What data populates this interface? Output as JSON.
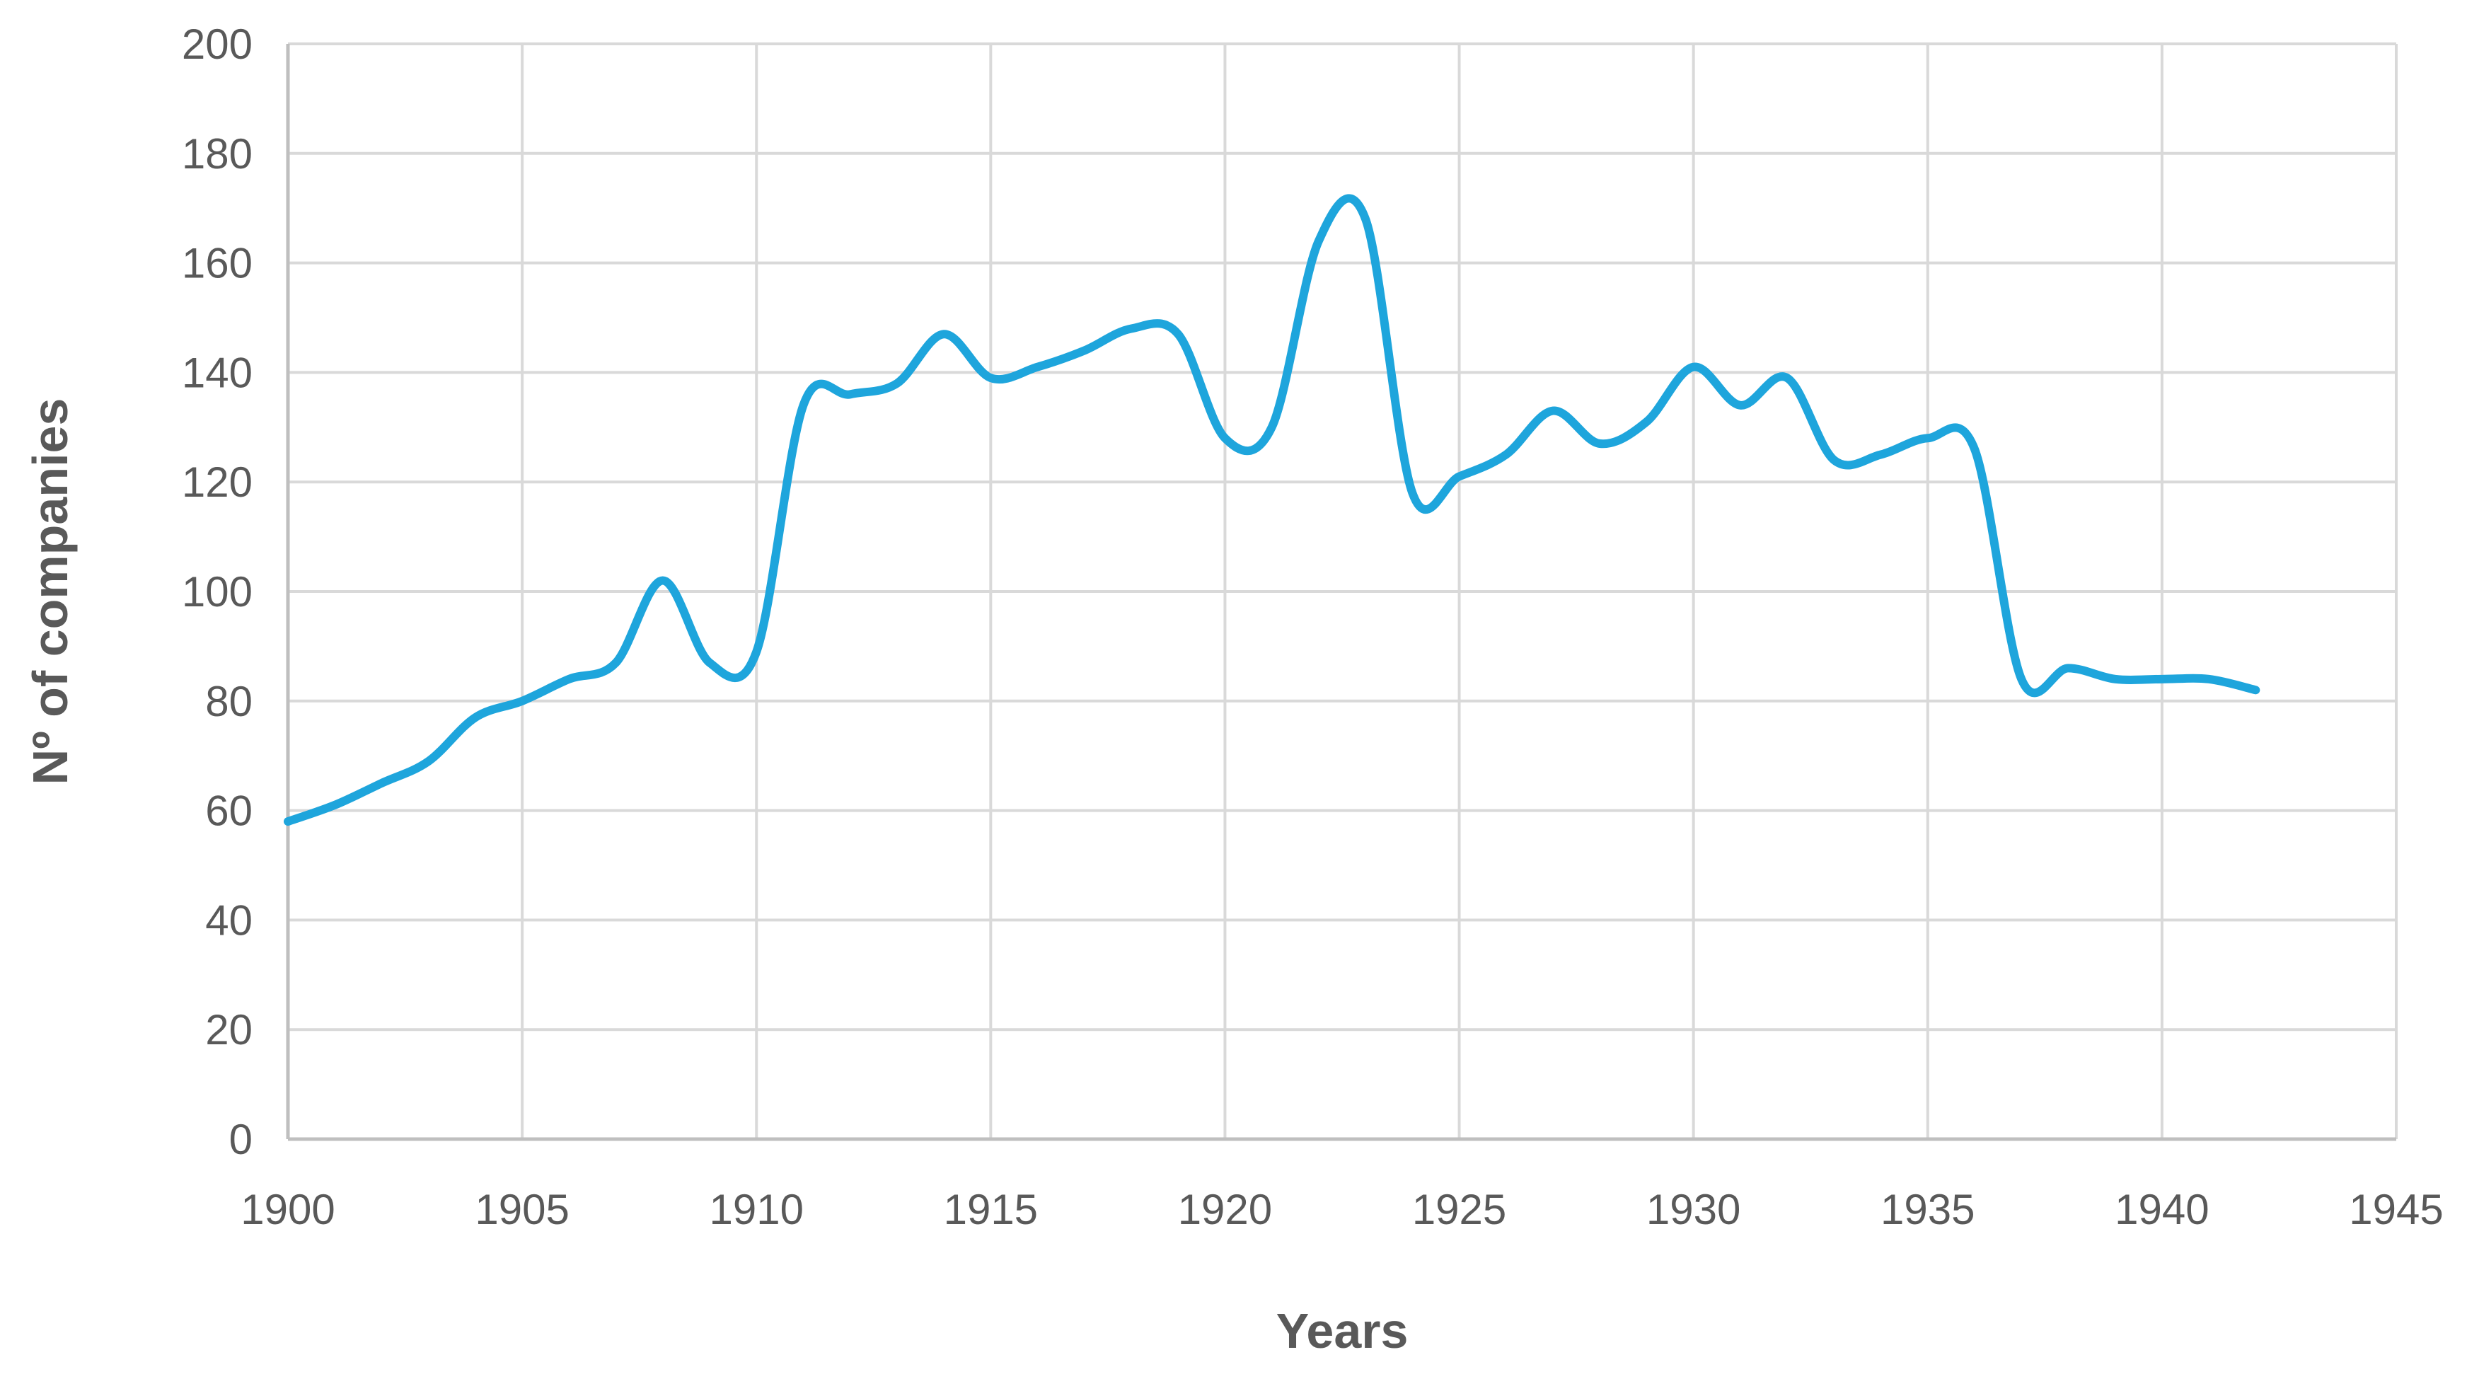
{
  "chart_data": {
    "type": "line",
    "title": "",
    "xlabel": "Years",
    "ylabel": "Nº of companies",
    "xlim": [
      1900,
      1945
    ],
    "ylim": [
      0,
      200
    ],
    "x_ticks": [
      1900,
      1905,
      1910,
      1915,
      1920,
      1925,
      1930,
      1935,
      1940,
      1945
    ],
    "y_ticks": [
      0,
      20,
      40,
      60,
      80,
      100,
      120,
      140,
      160,
      180,
      200
    ],
    "grid": true,
    "legend": "none",
    "smooth": true,
    "series": [
      {
        "color": "#1ea5dc",
        "x": [
          1900,
          1901,
          1902,
          1903,
          1904,
          1905,
          1906,
          1907,
          1908,
          1909,
          1910,
          1911,
          1912,
          1913,
          1914,
          1915,
          1916,
          1917,
          1918,
          1919,
          1920,
          1921,
          1922,
          1923,
          1924,
          1925,
          1926,
          1927,
          1928,
          1929,
          1930,
          1931,
          1932,
          1933,
          1934,
          1935,
          1936,
          1937,
          1938,
          1939,
          1940,
          1941,
          1942
        ],
        "values": [
          58,
          61,
          65,
          69,
          77,
          80,
          84,
          87,
          102,
          87,
          89,
          134,
          136,
          138,
          147,
          139,
          141,
          144,
          148,
          147,
          128,
          130,
          164,
          168,
          118,
          121,
          125,
          133,
          127,
          131,
          141,
          134,
          139,
          124,
          125,
          128,
          126,
          84,
          86,
          84,
          84,
          84,
          82
        ]
      }
    ]
  }
}
